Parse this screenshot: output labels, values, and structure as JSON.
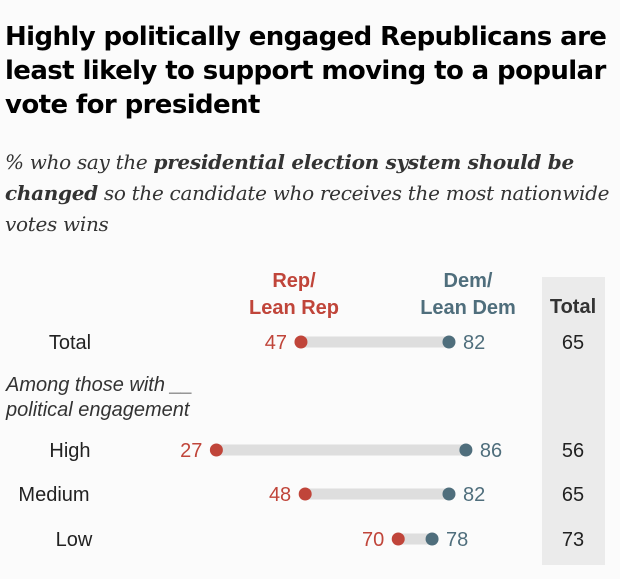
{
  "title": "Highly politically engaged Republicans are least likely to support moving to a popular vote for president",
  "subtitle": {
    "pre": "% who say the ",
    "bold": "presidential election system should be changed",
    "post": " so the candidate who receives the most nationwide votes wins"
  },
  "chart_data": {
    "type": "dot",
    "series": [
      {
        "name": "Rep/ Lean Rep",
        "color": "#c0453a",
        "values": [
          47,
          27,
          48,
          70
        ]
      },
      {
        "name": "Dem/ Lean Dem",
        "color": "#4f6e7c",
        "values": [
          82,
          86,
          82,
          78
        ]
      }
    ],
    "categories": [
      "Total",
      "High",
      "Medium",
      "Low"
    ],
    "group_label": "Among those with __ political engagement",
    "total_header": "Total",
    "totals": [
      65,
      56,
      65,
      73
    ],
    "xlim": [
      0,
      100
    ]
  }
}
